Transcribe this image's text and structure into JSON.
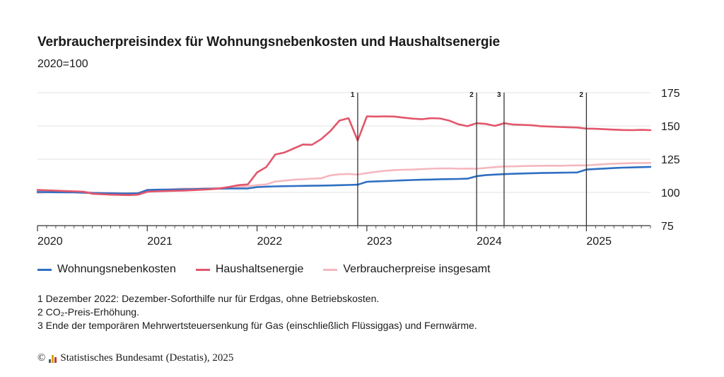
{
  "title": "Verbraucherpreisindex für Wohnungsnebenkosten und Haushaltsenergie",
  "subtitle": "2020=100",
  "legend": [
    {
      "label": "Wohnungsnebenkosten",
      "color": "#2f6fc2"
    },
    {
      "label": "Haushaltsenergie",
      "color": "#e2566b"
    },
    {
      "label": "Verbraucherpreise insgesamt",
      "color": "#f5b7bf"
    }
  ],
  "notes": [
    "1 Dezember 2022: Dezember-Soforthilfe nur für Erdgas, ohne Betriebskosten.",
    "2 CO₂-Preis-Erhöhung.",
    "3 Ende der temporären Mehrwertsteuersenkung für Gas (einschließlich Flüssiggas) und Fernwärme."
  ],
  "source": "Statistisches Bundesamt (Destatis), 2025",
  "copyright_symbol": "©",
  "chart_data": {
    "type": "line",
    "ylim": [
      75,
      175
    ],
    "yticks": [
      "175",
      "150",
      "125",
      "100",
      "75"
    ],
    "ytick_values": [
      175,
      150,
      125,
      100,
      75
    ],
    "xticks": [
      "2020",
      "2021",
      "2022",
      "2023",
      "2024",
      "2025"
    ],
    "x_start": "2020-01",
    "x_end": "2025-08",
    "grid": true,
    "annotations": [
      {
        "label": "1",
        "x": "2022-12"
      },
      {
        "label": "2",
        "x": "2024-01"
      },
      {
        "label": "3",
        "x": "2024-04"
      },
      {
        "label": "2",
        "x": "2025-01"
      }
    ],
    "series": [
      {
        "name": "Wohnungsnebenkosten",
        "color": "#2f6fc2",
        "values": [
          100.3,
          100.2,
          100.1,
          100.0,
          100.0,
          99.8,
          99.5,
          99.4,
          99.3,
          99.2,
          99.2,
          99.3,
          101.8,
          102.0,
          102.1,
          102.2,
          102.3,
          102.4,
          102.6,
          102.7,
          102.8,
          102.9,
          102.9,
          103.0,
          104.0,
          104.3,
          104.5,
          104.7,
          104.8,
          104.9,
          105.0,
          105.1,
          105.2,
          105.4,
          105.6,
          105.8,
          108.0,
          108.3,
          108.5,
          108.8,
          109.1,
          109.3,
          109.5,
          109.7,
          109.9,
          110.0,
          110.1,
          110.3,
          112.2,
          113.0,
          113.4,
          113.7,
          114.0,
          114.2,
          114.4,
          114.6,
          114.7,
          114.8,
          114.9,
          115.0,
          117.2,
          117.6,
          117.9,
          118.3,
          118.6,
          118.8,
          119.0,
          119.2
        ]
      },
      {
        "name": "Haushaltsenergie",
        "color": "#e2566b",
        "values": [
          101.8,
          101.6,
          101.3,
          101.0,
          100.8,
          100.5,
          99.0,
          98.6,
          98.3,
          98.1,
          98.0,
          98.3,
          100.5,
          100.8,
          101.0,
          101.2,
          101.4,
          101.7,
          102.0,
          102.4,
          103.0,
          104.2,
          105.5,
          106.0,
          115.0,
          119.0,
          128.5,
          130.0,
          133.0,
          136.0,
          135.8,
          140.0,
          146.0,
          154.0,
          155.8,
          139.0,
          157.2,
          157.0,
          157.2,
          157.0,
          156.2,
          155.5,
          155.0,
          155.8,
          155.6,
          154.0,
          151.2,
          149.8,
          152.0,
          151.5,
          150.0,
          152.0,
          151.0,
          150.8,
          150.5,
          149.8,
          149.5,
          149.2,
          149.0,
          148.8,
          148.0,
          147.8,
          147.5,
          147.2,
          146.9,
          146.8,
          147.0,
          146.8
        ]
      },
      {
        "name": "Verbraucherpreise insgesamt",
        "color": "#f5b7bf",
        "values": [
          99.7,
          100.0,
          100.1,
          100.4,
          100.3,
          100.5,
          99.9,
          99.6,
          99.6,
          99.5,
          99.3,
          99.7,
          101.2,
          101.5,
          102.0,
          102.5,
          102.8,
          102.9,
          103.0,
          103.2,
          103.4,
          104.0,
          104.2,
          104.5,
          105.5,
          106.0,
          108.2,
          108.8,
          109.6,
          109.9,
          110.3,
          110.6,
          112.8,
          113.6,
          113.9,
          113.4,
          114.5,
          115.5,
          116.2,
          116.8,
          117.0,
          117.2,
          117.5,
          117.8,
          118.0,
          118.1,
          117.8,
          117.9,
          117.8,
          118.4,
          119.0,
          119.5,
          119.6,
          119.8,
          119.9,
          120.0,
          120.1,
          120.0,
          120.2,
          120.3,
          120.3,
          120.8,
          121.2,
          121.6,
          121.8,
          122.0,
          122.1,
          122.2
        ]
      }
    ]
  }
}
